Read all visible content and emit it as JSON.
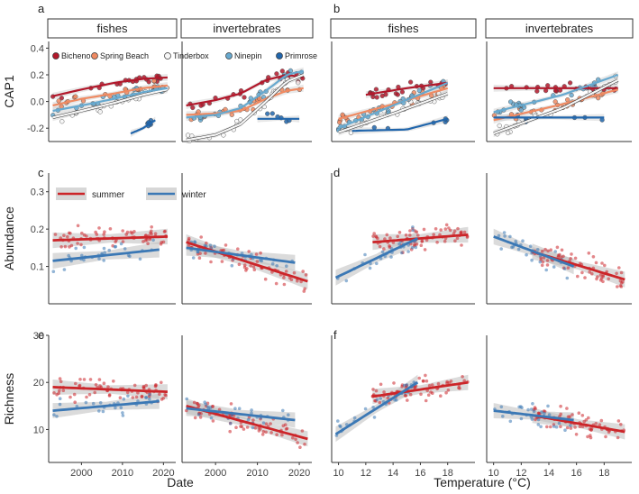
{
  "figure": {
    "shared_xlabel_left": "Date",
    "shared_xlabel_right": "Temperature (°C)",
    "colors": {
      "summer": "#cc2529",
      "winter": "#3b78b5",
      "Bicheno": "#b2182b",
      "Spring Beach": "#ef8a62",
      "Tinderbox": "#f7f7f7",
      "Ninepin": "#67a9cf",
      "Primrose": "#2166ac",
      "ribbon": "#bdbdbd"
    }
  },
  "chart_data": [
    {
      "panel": "a",
      "type": "scatter",
      "ylabel": "CAP1",
      "xlabel": "Date",
      "ylim": [
        -0.3,
        0.45
      ],
      "yticks": [
        -0.2,
        0.0,
        0.2,
        0.4
      ],
      "xlim": [
        1992,
        2023
      ],
      "facets": [
        "fishes",
        "invertebrates"
      ],
      "legend": [
        "Bicheno",
        "Spring Beach",
        "Tinderbox",
        "Ninepin",
        "Primrose"
      ],
      "series": [
        {
          "name": "Bicheno",
          "facet": "fishes",
          "x": [
            1993,
            2000,
            2008,
            2015,
            2021
          ],
          "values": [
            0.04,
            0.09,
            0.14,
            0.17,
            0.18
          ]
        },
        {
          "name": "Spring Beach",
          "facet": "fishes",
          "x": [
            1993,
            2000,
            2008,
            2015,
            2021
          ],
          "values": [
            -0.03,
            0.02,
            0.06,
            0.1,
            0.12
          ]
        },
        {
          "name": "Tinderbox",
          "facet": "fishes",
          "x": [
            1993,
            2000,
            2008,
            2015,
            2021
          ],
          "values": [
            -0.12,
            -0.07,
            -0.01,
            0.05,
            0.09
          ]
        },
        {
          "name": "Ninepin",
          "facet": "fishes",
          "x": [
            1993,
            2000,
            2008,
            2015,
            2021
          ],
          "values": [
            -0.07,
            -0.03,
            0.02,
            0.07,
            0.1
          ]
        },
        {
          "name": "Primrose",
          "facet": "fishes",
          "x": [
            2012,
            2015,
            2018
          ],
          "values": [
            -0.24,
            -0.2,
            -0.14
          ]
        },
        {
          "name": "Bicheno",
          "facet": "invertebrates",
          "x": [
            1993,
            2000,
            2006,
            2012,
            2017,
            2021
          ],
          "values": [
            -0.03,
            0.01,
            0.06,
            0.16,
            0.2,
            0.18
          ]
        },
        {
          "name": "Spring Beach",
          "facet": "invertebrates",
          "x": [
            1993,
            2000,
            2006,
            2012,
            2017,
            2021
          ],
          "values": [
            -0.1,
            -0.09,
            -0.07,
            0.02,
            0.08,
            0.1
          ]
        },
        {
          "name": "Tinderbox",
          "facet": "invertebrates",
          "x": [
            1993,
            2000,
            2006,
            2012,
            2017,
            2021
          ],
          "values": [
            -0.29,
            -0.25,
            -0.17,
            0.0,
            0.15,
            0.2
          ]
        },
        {
          "name": "Ninepin",
          "facet": "invertebrates",
          "x": [
            1993,
            2000,
            2006,
            2012,
            2017,
            2021
          ],
          "values": [
            -0.12,
            -0.1,
            -0.05,
            0.08,
            0.2,
            0.23
          ]
        },
        {
          "name": "Primrose",
          "facet": "invertebrates",
          "x": [
            2010,
            2015,
            2020
          ],
          "values": [
            -0.13,
            -0.13,
            -0.13
          ]
        }
      ]
    },
    {
      "panel": "b",
      "type": "scatter",
      "xlabel": "Temperature (°C)",
      "ylim": [
        -0.3,
        0.45
      ],
      "xlim": [
        9.5,
        20
      ],
      "facets": [
        "fishes",
        "invertebrates"
      ],
      "series": [
        {
          "name": "Bicheno",
          "facet": "fishes",
          "x": [
            12,
            15,
            18
          ],
          "values": [
            0.05,
            0.1,
            0.14
          ]
        },
        {
          "name": "Spring Beach",
          "facet": "fishes",
          "x": [
            10,
            14,
            18
          ],
          "values": [
            -0.13,
            -0.02,
            0.1
          ]
        },
        {
          "name": "Tinderbox",
          "facet": "fishes",
          "x": [
            10,
            14,
            18
          ],
          "values": [
            -0.23,
            -0.09,
            0.06
          ]
        },
        {
          "name": "Ninepin",
          "facet": "fishes",
          "x": [
            10,
            14,
            18
          ],
          "values": [
            -0.2,
            -0.03,
            0.14
          ]
        },
        {
          "name": "Primrose",
          "facet": "fishes",
          "x": [
            11,
            15,
            18
          ],
          "values": [
            -0.22,
            -0.21,
            -0.13
          ]
        },
        {
          "name": "Bicheno",
          "facet": "invertebrates",
          "x": [
            10,
            15,
            19
          ],
          "values": [
            0.1,
            0.1,
            0.1
          ]
        },
        {
          "name": "Spring Beach",
          "facet": "invertebrates",
          "x": [
            10,
            15,
            19
          ],
          "values": [
            -0.14,
            -0.02,
            0.09
          ]
        },
        {
          "name": "Tinderbox",
          "facet": "invertebrates",
          "x": [
            10,
            15,
            19
          ],
          "values": [
            -0.24,
            -0.05,
            0.16
          ]
        },
        {
          "name": "Ninepin",
          "facet": "invertebrates",
          "x": [
            10,
            15,
            19
          ],
          "values": [
            -0.08,
            0.05,
            0.2
          ]
        },
        {
          "name": "Primrose",
          "facet": "invertebrates",
          "x": [
            10,
            15,
            18
          ],
          "values": [
            -0.12,
            -0.12,
            -0.12
          ]
        }
      ]
    },
    {
      "panel": "c",
      "type": "scatter",
      "ylabel": "Abundance",
      "xlabel": "Date",
      "ylim": [
        0.0,
        0.35
      ],
      "yticks": [
        0.1,
        0.2,
        0.3
      ],
      "xlim": [
        1992,
        2023
      ],
      "legend": [
        "summer",
        "winter"
      ],
      "series": [
        {
          "name": "summer",
          "facet": "fishes",
          "x": [
            1993,
            2021
          ],
          "values": [
            0.17,
            0.18
          ]
        },
        {
          "name": "winter",
          "facet": "fishes",
          "x": [
            1993,
            2019
          ],
          "values": [
            0.115,
            0.145
          ]
        },
        {
          "name": "summer",
          "facet": "invertebrates",
          "x": [
            1993,
            2022
          ],
          "values": [
            0.165,
            0.06
          ]
        },
        {
          "name": "winter",
          "facet": "invertebrates",
          "x": [
            1993,
            2019
          ],
          "values": [
            0.15,
            0.11
          ]
        }
      ]
    },
    {
      "panel": "d",
      "type": "scatter",
      "xlabel": "Temperature (°C)",
      "ylim": [
        0.0,
        0.35
      ],
      "xlim": [
        9.5,
        20
      ],
      "series": [
        {
          "name": "summer",
          "facet": "fishes",
          "x": [
            12.5,
            19.5
          ],
          "values": [
            0.165,
            0.185
          ]
        },
        {
          "name": "winter",
          "facet": "fishes",
          "x": [
            9.8,
            15.8
          ],
          "values": [
            0.07,
            0.175
          ]
        },
        {
          "name": "summer",
          "facet": "invertebrates",
          "x": [
            12.8,
            19.5
          ],
          "values": [
            0.14,
            0.065
          ]
        },
        {
          "name": "winter",
          "facet": "invertebrates",
          "x": [
            10,
            15.8
          ],
          "values": [
            0.18,
            0.1
          ]
        }
      ]
    },
    {
      "panel": "e",
      "type": "scatter",
      "ylabel": "Richness",
      "xlabel": "Date",
      "ylim": [
        3,
        30
      ],
      "yticks": [
        10,
        20,
        30
      ],
      "xlim": [
        1992,
        2023
      ],
      "xticks": [
        2000,
        2010,
        2020
      ],
      "series": [
        {
          "name": "summer",
          "facet": "fishes",
          "x": [
            1993,
            2021
          ],
          "values": [
            19,
            18
          ]
        },
        {
          "name": "winter",
          "facet": "fishes",
          "x": [
            1993,
            2019
          ],
          "values": [
            14,
            16
          ]
        },
        {
          "name": "summer",
          "facet": "invertebrates",
          "x": [
            1993,
            2022
          ],
          "values": [
            15,
            8
          ]
        },
        {
          "name": "winter",
          "facet": "invertebrates",
          "x": [
            1993,
            2019
          ],
          "values": [
            14.5,
            12
          ]
        }
      ]
    },
    {
      "panel": "f",
      "type": "scatter",
      "xlabel": "Temperature (°C)",
      "ylim": [
        3,
        30
      ],
      "xlim": [
        9.5,
        20
      ],
      "xticks_left": [
        10,
        12,
        14,
        16,
        18
      ],
      "xticks_right": [
        10,
        12,
        14,
        16,
        18
      ],
      "series": [
        {
          "name": "summer",
          "facet": "fishes",
          "x": [
            12.5,
            19.5
          ],
          "values": [
            17,
            20
          ]
        },
        {
          "name": "winter",
          "facet": "fishes",
          "x": [
            9.8,
            15.8
          ],
          "values": [
            9,
            20
          ]
        },
        {
          "name": "summer",
          "facet": "invertebrates",
          "x": [
            12.8,
            19.5
          ],
          "values": [
            13,
            9.5
          ]
        },
        {
          "name": "winter",
          "facet": "invertebrates",
          "x": [
            10,
            15.8
          ],
          "values": [
            14,
            12
          ]
        }
      ]
    }
  ]
}
